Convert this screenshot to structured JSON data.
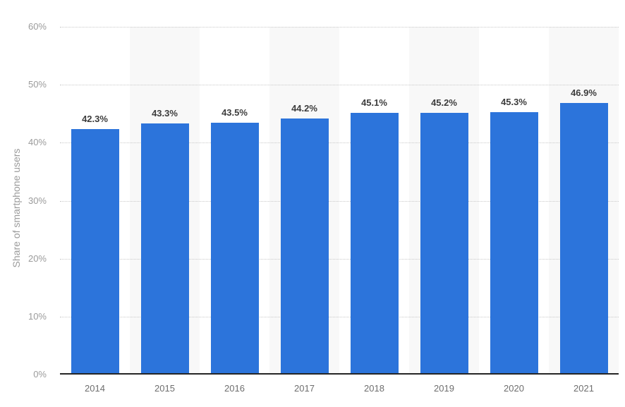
{
  "chart_data": {
    "type": "bar",
    "title": "",
    "categories": [
      "2014",
      "2015",
      "2016",
      "2017",
      "2018",
      "2019",
      "2020",
      "2021"
    ],
    "values": [
      42.3,
      43.3,
      43.5,
      44.2,
      45.1,
      45.2,
      45.3,
      46.9
    ],
    "value_labels": [
      "42.3%",
      "43.3%",
      "43.5%",
      "44.2%",
      "45.1%",
      "45.2%",
      "45.3%",
      "46.9%"
    ],
    "xlabel": "",
    "ylabel": "Share of smartphone users",
    "ylim": [
      0,
      60
    ],
    "ytick_step": 10,
    "ytick_labels": [
      "0%",
      "10%",
      "20%",
      "30%",
      "40%",
      "50%",
      "60%"
    ],
    "grid": "horizontal-dotted",
    "legend": "none",
    "banded_columns": "alternating-odd",
    "colors": {
      "bar": "#2c74db",
      "band": "#f8f8f8",
      "gridline": "#c9c9c9",
      "axis_line": "#262626",
      "y_tick_label": "#9b9b9b",
      "x_tick_label": "#6e6e6e",
      "value_label": "#3c3c3c",
      "y_title": "#9b9b9b",
      "background": "#ffffff"
    }
  }
}
